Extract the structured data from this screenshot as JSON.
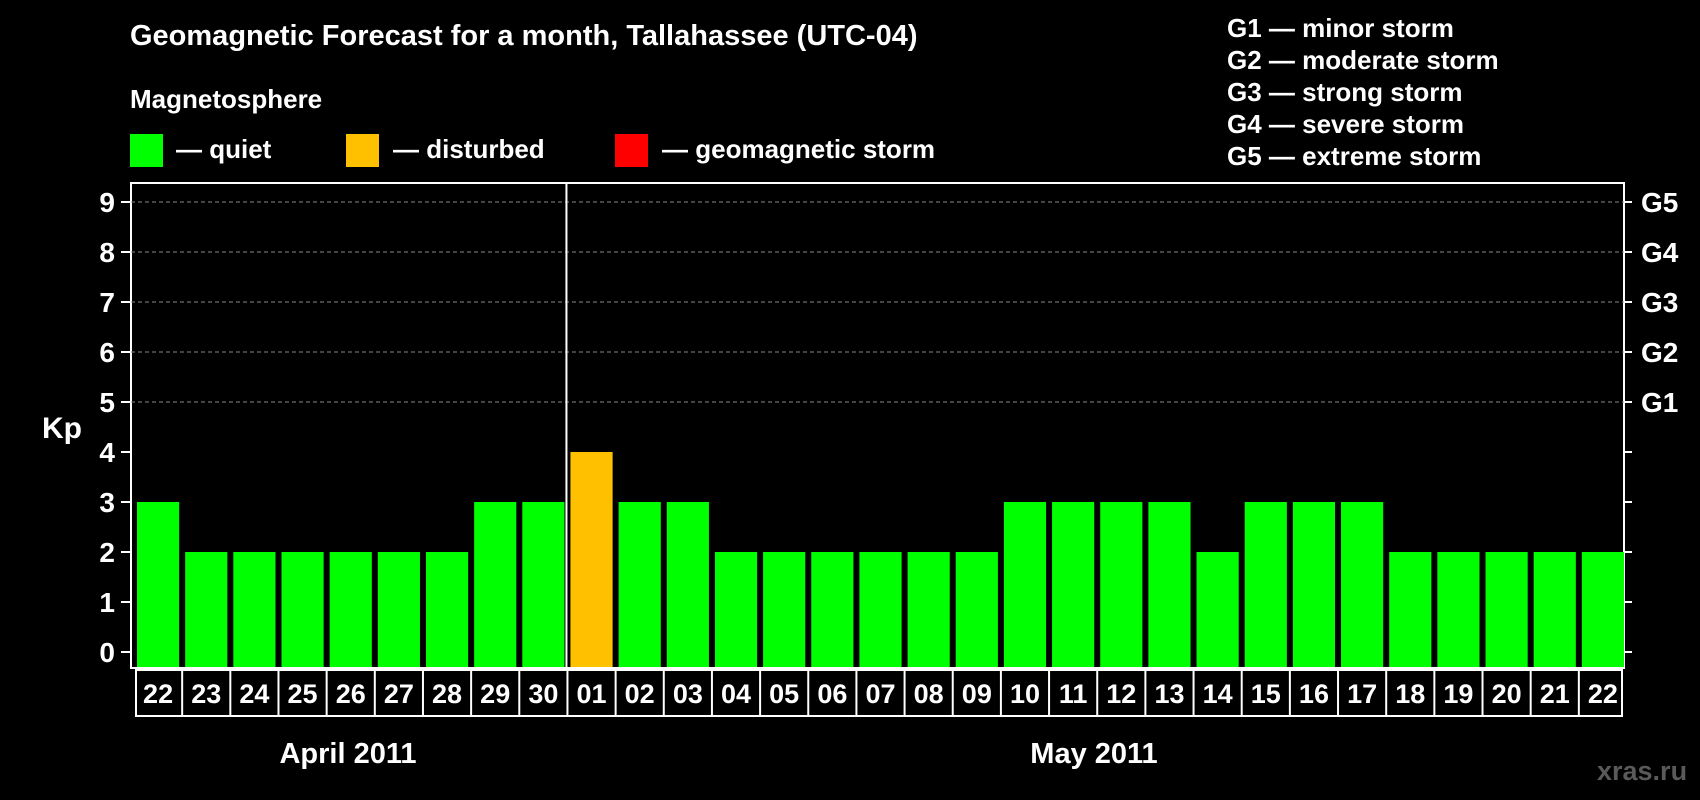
{
  "title": "Geomagnetic Forecast for a month, Tallahassee (UTC-04)",
  "subtitle": "Magnetosphere",
  "legend": [
    {
      "label": "— quiet",
      "color": "#00ff00"
    },
    {
      "label": "— disturbed",
      "color": "#ffc000"
    },
    {
      "label": "— geomagnetic storm",
      "color": "#ff0000"
    }
  ],
  "storm_scale": [
    "G1 — minor storm",
    "G2 — moderate storm",
    "G3 — strong storm",
    "G4 — severe storm",
    "G5 — extreme storm"
  ],
  "watermark": "xras.ru",
  "chart_data": {
    "type": "bar",
    "ylabel": "Kp",
    "ylim": [
      0,
      9
    ],
    "yticks": [
      "0",
      "1",
      "2",
      "3",
      "4",
      "5",
      "6",
      "7",
      "8",
      "9"
    ],
    "right_ticks": [
      {
        "kp": 5,
        "label": "G1"
      },
      {
        "kp": 6,
        "label": "G2"
      },
      {
        "kp": 7,
        "label": "G3"
      },
      {
        "kp": 8,
        "label": "G4"
      },
      {
        "kp": 9,
        "label": "G5"
      }
    ],
    "grid": "dashed horizontal at Kp 5-9",
    "month_labels": [
      "April 2011",
      "May 2011"
    ],
    "categories": [
      "22",
      "23",
      "24",
      "25",
      "26",
      "27",
      "28",
      "29",
      "30",
      "01",
      "02",
      "03",
      "04",
      "05",
      "06",
      "07",
      "08",
      "09",
      "10",
      "11",
      "12",
      "13",
      "14",
      "15",
      "16",
      "17",
      "18",
      "19",
      "20",
      "21",
      "22"
    ],
    "values": [
      3,
      2,
      2,
      2,
      2,
      2,
      2,
      3,
      3,
      4,
      3,
      3,
      2,
      2,
      2,
      2,
      2,
      2,
      3,
      3,
      3,
      3,
      2,
      3,
      3,
      3,
      2,
      2,
      2,
      2,
      2
    ],
    "status": [
      "quiet",
      "quiet",
      "quiet",
      "quiet",
      "quiet",
      "quiet",
      "quiet",
      "quiet",
      "quiet",
      "disturbed",
      "quiet",
      "quiet",
      "quiet",
      "quiet",
      "quiet",
      "quiet",
      "quiet",
      "quiet",
      "quiet",
      "quiet",
      "quiet",
      "quiet",
      "quiet",
      "quiet",
      "quiet",
      "quiet",
      "quiet",
      "quiet",
      "quiet",
      "quiet",
      "quiet"
    ],
    "colors": {
      "quiet": "#00ff00",
      "disturbed": "#ffc000",
      "storm": "#ff0000"
    }
  }
}
